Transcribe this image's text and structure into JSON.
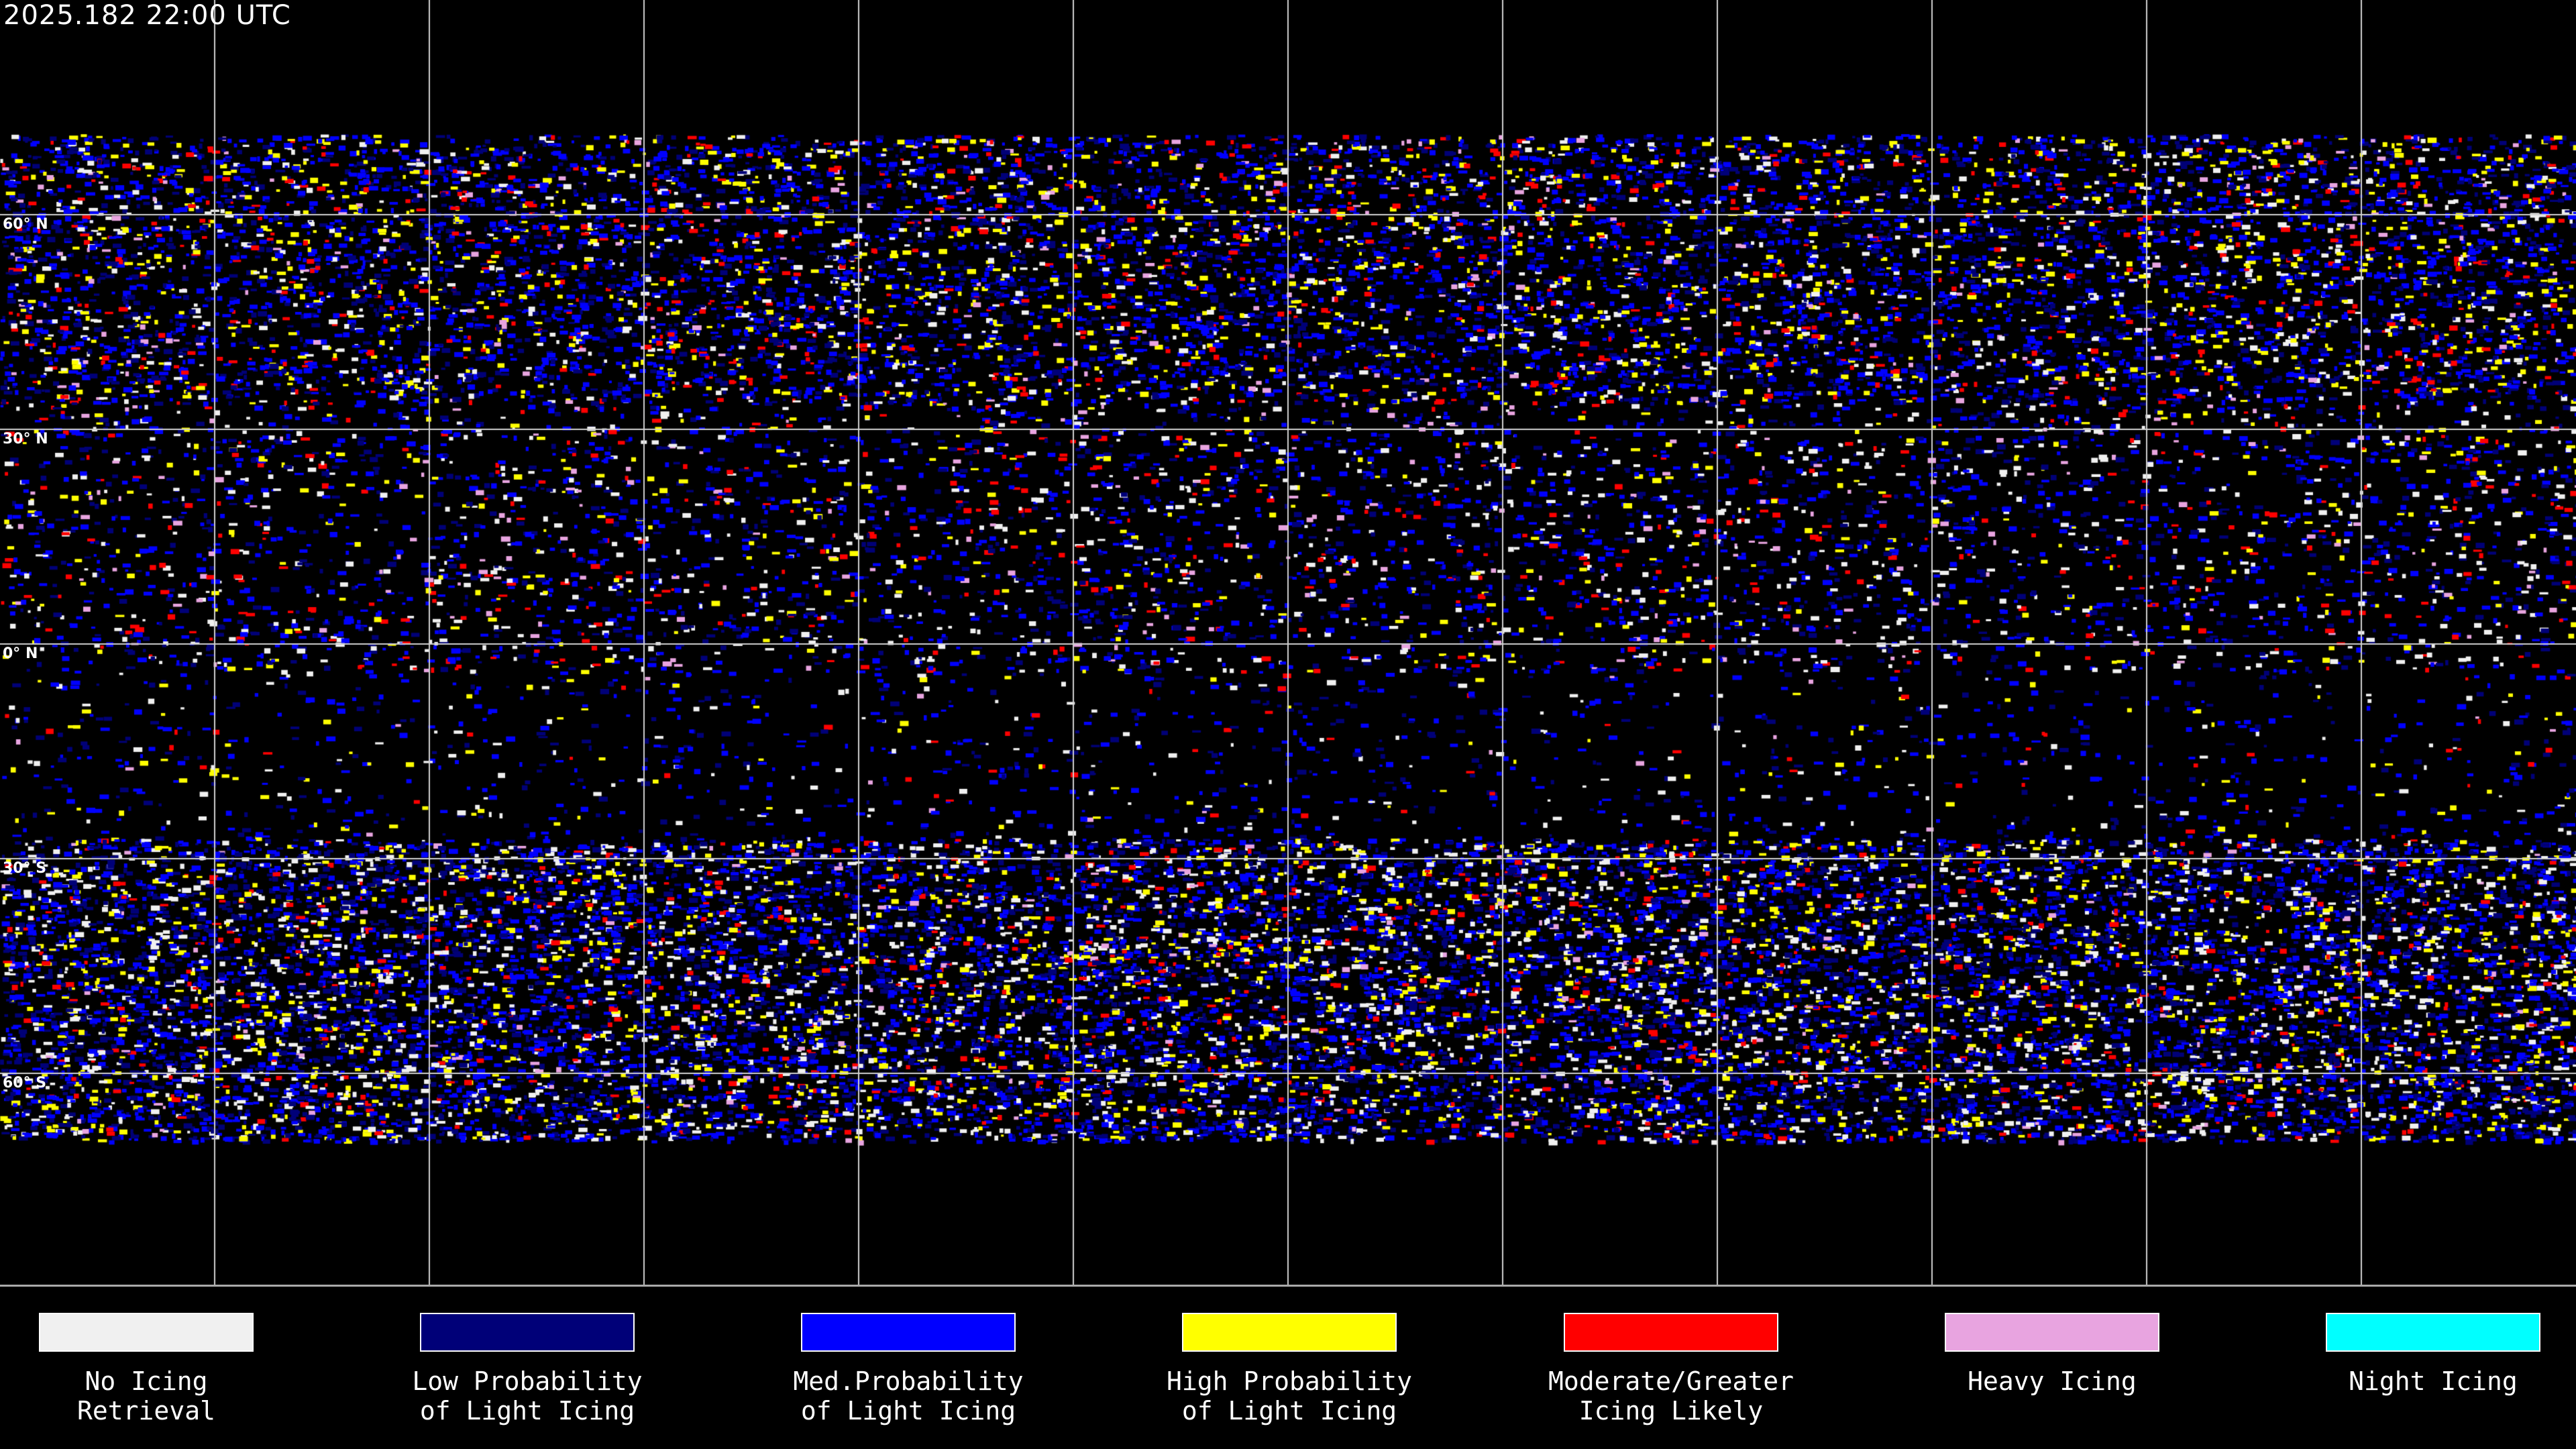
{
  "header": {
    "timestamp": "2025.182 22:00 UTC"
  },
  "map": {
    "latitude_labels": [
      "60° N",
      "30° N",
      "0° N",
      "30° S",
      "60° S"
    ],
    "gridline_color": "#d0d0d0",
    "coastline_color": "#ffffff"
  },
  "legend": [
    {
      "line1": "No Icing",
      "line2": "Retrieval",
      "color": "#f0f0f0"
    },
    {
      "line1": "Low Probability",
      "line2": "of Light Icing",
      "color": "#000078"
    },
    {
      "line1": "Med.Probability",
      "line2": "of Light Icing",
      "color": "#0000ff"
    },
    {
      "line1": "High Probability",
      "line2": "of Light Icing",
      "color": "#ffff00"
    },
    {
      "line1": "Moderate/Greater",
      "line2": "Icing Likely",
      "color": "#ff0000"
    },
    {
      "line1": "Heavy Icing",
      "line2": "",
      "color": "#e8a4e0"
    },
    {
      "line1": "Night Icing",
      "line2": "",
      "color": "#00ffff"
    }
  ]
}
